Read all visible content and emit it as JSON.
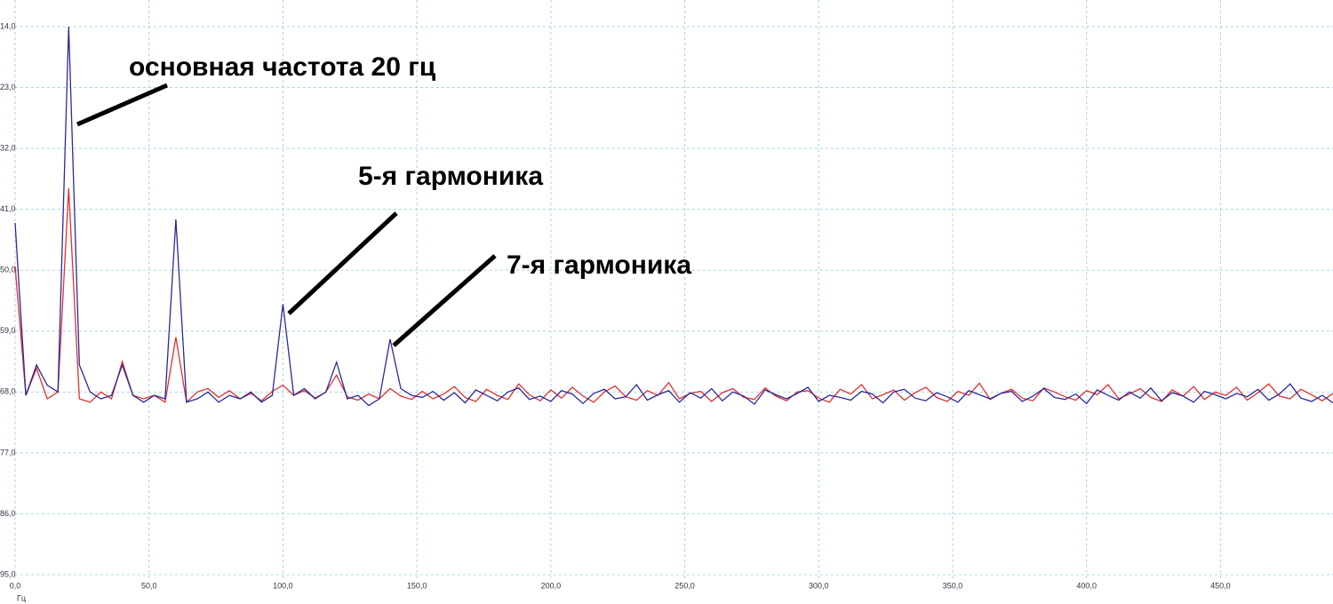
{
  "chart_data": {
    "type": "line",
    "x_label": "Гц",
    "xlim": [
      0,
      492
    ],
    "ylim": [
      95,
      14
    ],
    "grid": true,
    "xticks": [
      {
        "value": 0,
        "label": "0,0"
      },
      {
        "value": 50,
        "label": "50,0"
      },
      {
        "value": 100,
        "label": "100,0"
      },
      {
        "value": 150,
        "label": "150,0"
      },
      {
        "value": 200,
        "label": "200,0"
      },
      {
        "value": 250,
        "label": "250,0"
      },
      {
        "value": 300,
        "label": "300,0"
      },
      {
        "value": 350,
        "label": "350,0"
      },
      {
        "value": 400,
        "label": "400,0"
      },
      {
        "value": 450,
        "label": "450,0"
      }
    ],
    "yticks": [
      {
        "value": 14,
        "label": "14,0"
      },
      {
        "value": 23,
        "label": "23,0"
      },
      {
        "value": 32,
        "label": "32,0"
      },
      {
        "value": 41,
        "label": "41,0"
      },
      {
        "value": 50,
        "label": "50,0"
      },
      {
        "value": 59,
        "label": "59,0"
      },
      {
        "value": 68,
        "label": "68,0"
      },
      {
        "value": 77,
        "label": "77,0"
      },
      {
        "value": 86,
        "label": "86,0"
      },
      {
        "value": 95,
        "label": "95,0"
      }
    ],
    "annotations": [
      {
        "text": "основная частота 20 гц"
      },
      {
        "text": "5-я гармоника"
      },
      {
        "text": "7-я гармоника"
      }
    ],
    "x": [
      0,
      4,
      8,
      12,
      16,
      20,
      24,
      28,
      32,
      36,
      40,
      44,
      48,
      52,
      56,
      60,
      64,
      68,
      72,
      76,
      80,
      84,
      88,
      92,
      96,
      100,
      104,
      108,
      112,
      116,
      120,
      124,
      128,
      132,
      136,
      140,
      144,
      148,
      152,
      156,
      160,
      164,
      168,
      172,
      176,
      180,
      184,
      188,
      192,
      196,
      200,
      204,
      208,
      212,
      216,
      220,
      224,
      228,
      232,
      236,
      240,
      244,
      248,
      252,
      256,
      260,
      264,
      268,
      272,
      276,
      280,
      284,
      288,
      292,
      296,
      300,
      304,
      308,
      312,
      316,
      320,
      324,
      328,
      332,
      336,
      340,
      344,
      348,
      352,
      356,
      360,
      364,
      368,
      372,
      376,
      380,
      384,
      388,
      392,
      396,
      400,
      404,
      408,
      412,
      416,
      420,
      424,
      428,
      432,
      436,
      440,
      444,
      448,
      452,
      456,
      460,
      464,
      468,
      472,
      476,
      480,
      484,
      488,
      492
    ],
    "series": [
      {
        "color": "#e03030",
        "values": [
          49.4,
          68.5,
          64.5,
          69,
          68,
          37.9,
          69,
          69.5,
          68,
          69,
          63.5,
          68.5,
          69,
          68.5,
          69.5,
          59.9,
          69.5,
          68,
          67.5,
          68.8,
          67.8,
          69,
          68.2,
          69.3,
          67.9,
          67,
          68.5,
          67.8,
          68.9,
          68,
          65.5,
          68.7,
          69.2,
          68.3,
          69,
          67.5,
          68.6,
          69.1,
          67.9,
          69.0,
          68.3,
          67.2,
          68.8,
          69.4,
          67.6,
          68.5,
          69.1,
          66.8,
          68.4,
          69.3,
          67.7,
          68.9,
          67.3,
          68.6,
          69.5,
          68.0,
          67.1,
          68.7,
          69.2,
          67.8,
          68.5,
          66.6,
          69.0,
          68.2,
          67.9,
          69.4,
          68.1,
          67.5,
          68.8,
          69.1,
          67.4,
          68.6,
          69.3,
          68.0,
          67.8,
          68.9,
          69.5,
          67.6,
          68.3,
          66.9,
          69.0,
          68.4,
          67.7,
          69.2,
          68.1,
          67.3,
          68.8,
          69.4,
          67.9,
          68.5,
          66.7,
          69.1,
          68.2,
          67.6,
          68.9,
          69.3,
          67.4,
          68.0,
          68.7,
          69.2,
          67.8,
          68.4,
          66.9,
          69.0,
          68.3,
          67.5,
          68.8,
          69.4,
          67.7,
          68.6,
          67.2,
          69.1,
          68.0,
          68.5,
          67.3,
          69.2,
          68.1,
          66.8,
          68.6,
          69.0,
          67.6,
          68.4,
          69.3,
          68.2
        ]
      },
      {
        "color": "#2a2a9a",
        "values": [
          43,
          68.5,
          64,
          67,
          68,
          14,
          64,
          68,
          69,
          68.5,
          64,
          68.5,
          69.5,
          68.5,
          69,
          42.5,
          69.5,
          69,
          68,
          69.5,
          68.5,
          69,
          68,
          69.5,
          68.5,
          55,
          68.5,
          67.5,
          69,
          68,
          63.6,
          69,
          68.5,
          70,
          69,
          60.2,
          67.5,
          68.5,
          68.8,
          67.9,
          69.2,
          68.1,
          69.6,
          67.7,
          68.5,
          69.3,
          68.0,
          67.4,
          69.1,
          68.6,
          69.4,
          67.8,
          68.3,
          69.7,
          68.2,
          67.6,
          69.0,
          68.7,
          66.9,
          69.2,
          68.4,
          67.8,
          69.5,
          68.1,
          68.9,
          67.5,
          69.3,
          68.0,
          68.6,
          69.8,
          67.7,
          68.4,
          69.0,
          68.2,
          67.3,
          69.4,
          68.5,
          68.8,
          69.2,
          67.9,
          68.3,
          69.6,
          68.0,
          67.6,
          68.9,
          69.3,
          68.1,
          68.7,
          69.5,
          67.8,
          68.4,
          69.0,
          68.2,
          67.9,
          69.4,
          68.6,
          67.5,
          68.8,
          69.1,
          68.3,
          69.7,
          67.7,
          68.5,
          69.2,
          68.0,
          68.9,
          67.4,
          69.3,
          68.1,
          68.6,
          69.5,
          67.9,
          68.4,
          69.0,
          68.2,
          68.7,
          67.6,
          69.2,
          68.3,
          66.8,
          68.9,
          69.4,
          68.5,
          69.6
        ]
      }
    ]
  }
}
